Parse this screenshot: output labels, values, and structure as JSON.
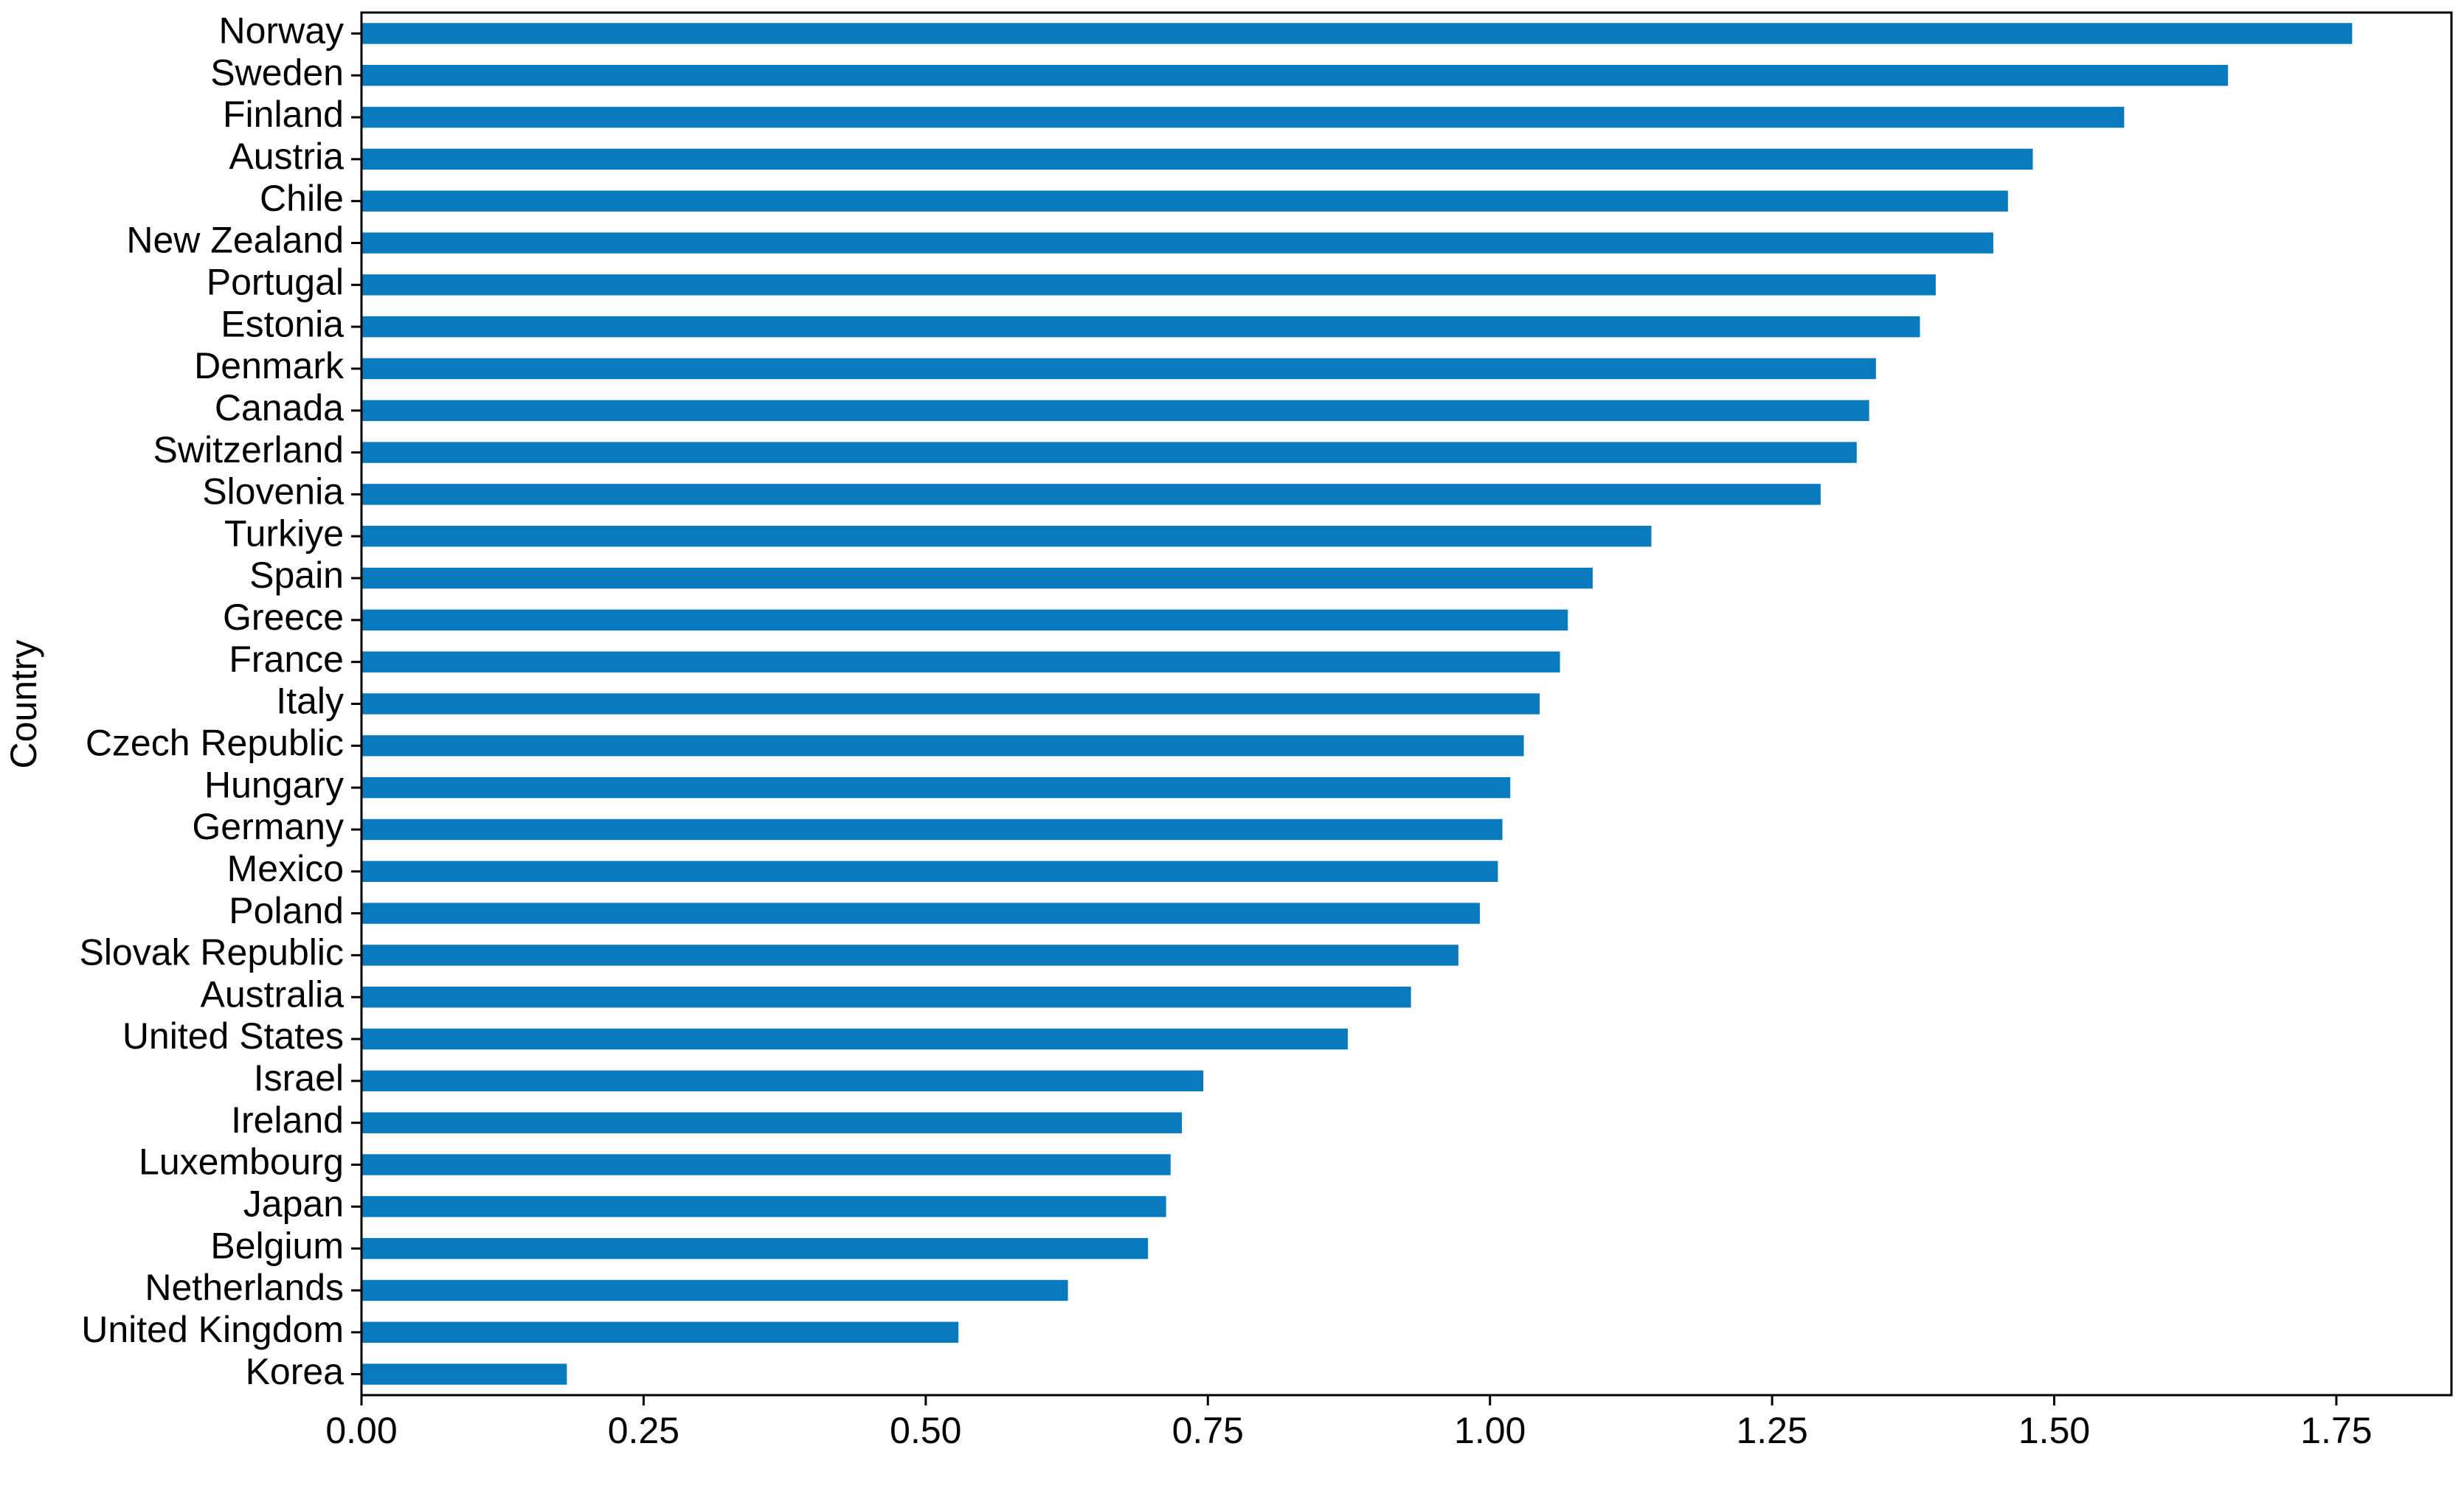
{
  "chart_data": {
    "type": "barh",
    "y_label": "Country",
    "categories": [
      "Norway",
      "Sweden",
      "Finland",
      "Austria",
      "Chile",
      "New Zealand",
      "Portugal",
      "Estonia",
      "Denmark",
      "Canada",
      "Switzerland",
      "Slovenia",
      "Turkiye",
      "Spain",
      "Greece",
      "France",
      "Italy",
      "Czech Republic",
      "Hungary",
      "Germany",
      "Mexico",
      "Poland",
      "Slovak Republic",
      "Australia",
      "United States",
      "Israel",
      "Ireland",
      "Luxembourg",
      "Japan",
      "Belgium",
      "Netherlands",
      "United Kingdom",
      "Korea"
    ],
    "values": [
      1.764,
      1.654,
      1.562,
      1.481,
      1.459,
      1.446,
      1.395,
      1.381,
      1.342,
      1.336,
      1.325,
      1.293,
      1.143,
      1.091,
      1.069,
      1.062,
      1.044,
      1.03,
      1.018,
      1.011,
      1.007,
      0.991,
      0.972,
      0.93,
      0.874,
      0.746,
      0.727,
      0.717,
      0.713,
      0.697,
      0.626,
      0.529,
      0.182
    ],
    "color": "#0a7abf",
    "xlim": [
      0,
      1.852
    ],
    "xticks": [
      {
        "value": 0,
        "label": "0.00"
      },
      {
        "value": 0.25,
        "label": "0.25"
      },
      {
        "value": 0.5,
        "label": "0.50"
      },
      {
        "value": 0.75,
        "label": "0.75"
      },
      {
        "value": 1,
        "label": "1.00"
      },
      {
        "value": 1.25,
        "label": "1.25"
      },
      {
        "value": 1.5,
        "label": "1.50"
      },
      {
        "value": 1.75,
        "label": "1.75"
      }
    ],
    "grid": false
  }
}
